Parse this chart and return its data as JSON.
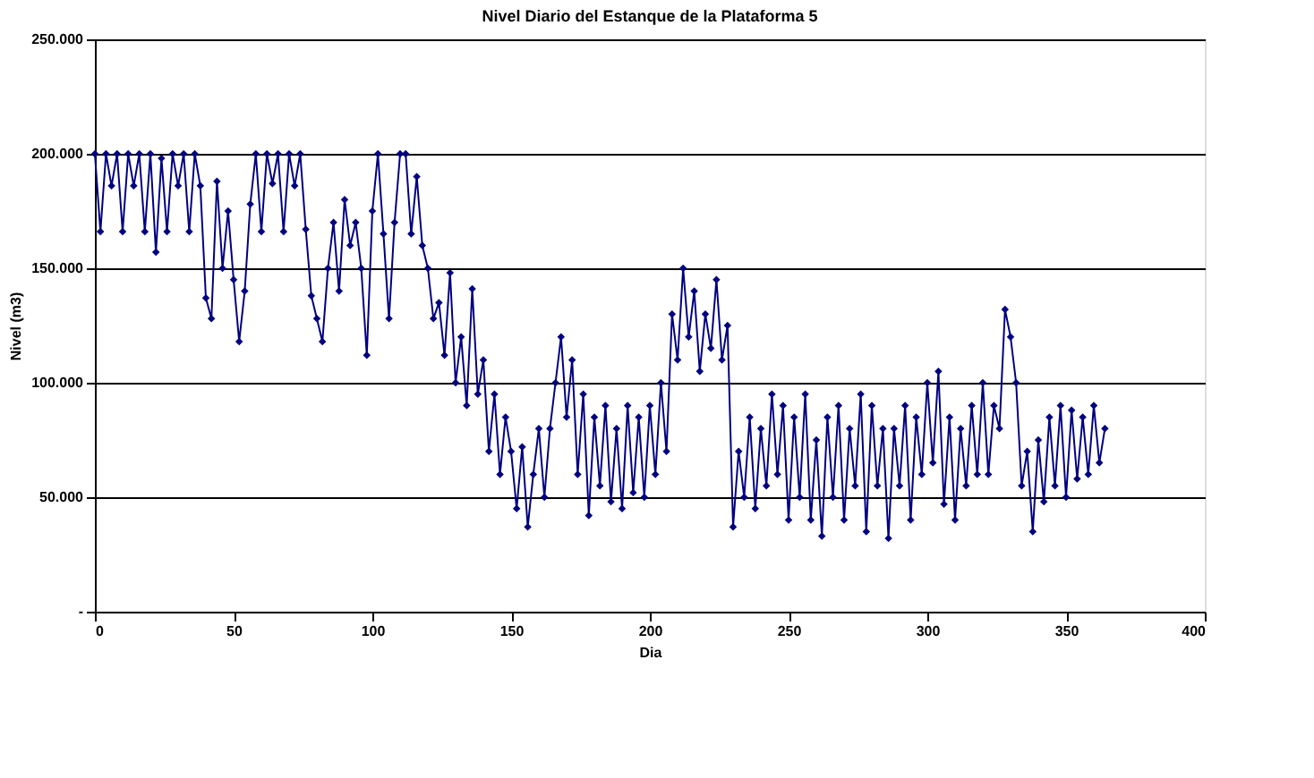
{
  "chart_data": {
    "type": "line",
    "title": "Nivel Diario del Estanque de la Plataforma 5",
    "xlabel": "Dia",
    "ylabel": "Nivel (m3)",
    "x": [
      0,
      2,
      4,
      6,
      8,
      10,
      12,
      14,
      16,
      18,
      20,
      22,
      24,
      26,
      28,
      30,
      32,
      34,
      36,
      38,
      40,
      42,
      44,
      46,
      48,
      50,
      52,
      54,
      56,
      58,
      60,
      62,
      64,
      66,
      68,
      70,
      72,
      74,
      76,
      78,
      80,
      82,
      84,
      86,
      88,
      90,
      92,
      94,
      96,
      98,
      100,
      102,
      104,
      106,
      108,
      110,
      112,
      114,
      116,
      118,
      120,
      122,
      124,
      126,
      128,
      130,
      132,
      134,
      136,
      138,
      140,
      142,
      144,
      146,
      148,
      150,
      152,
      154,
      156,
      158,
      160,
      162,
      164,
      166,
      168,
      170,
      172,
      174,
      176,
      178,
      180,
      182,
      184,
      186,
      188,
      190,
      192,
      194,
      196,
      198,
      200,
      202,
      204,
      206,
      208,
      210,
      212,
      214,
      216,
      218,
      220,
      222,
      224,
      226,
      228,
      230,
      232,
      234,
      236,
      238,
      240,
      242,
      244,
      246,
      248,
      250,
      252,
      254,
      256,
      258,
      260,
      262,
      264,
      266,
      268,
      270,
      272,
      274,
      276,
      278,
      280,
      282,
      284,
      286,
      288,
      290,
      292,
      294,
      296,
      298,
      300,
      302,
      304,
      306,
      308,
      310,
      312,
      314,
      316,
      318,
      320,
      322,
      324,
      326,
      328,
      330,
      332,
      334,
      336,
      338,
      340,
      342,
      344,
      346,
      348,
      350,
      352,
      354,
      356,
      358,
      360,
      362,
      364
    ],
    "series": [
      {
        "color": "#000080",
        "values": [
          200000,
          166000,
          200000,
          186000,
          200000,
          166000,
          200000,
          186000,
          200000,
          166000,
          200000,
          157000,
          198000,
          166000,
          200000,
          186000,
          200000,
          166000,
          200000,
          186000,
          137000,
          128000,
          188000,
          150000,
          175000,
          145000,
          118000,
          140000,
          178000,
          200000,
          166000,
          200000,
          187000,
          200000,
          166000,
          200000,
          186000,
          200000,
          167000,
          138000,
          128000,
          118000,
          150000,
          170000,
          140000,
          180000,
          160000,
          170000,
          150000,
          112000,
          175000,
          200000,
          165000,
          128000,
          170000,
          200000,
          200000,
          165000,
          190000,
          160000,
          150000,
          128000,
          135000,
          112000,
          148000,
          100000,
          120000,
          90000,
          141000,
          95000,
          110000,
          70000,
          95000,
          60000,
          85000,
          70000,
          45000,
          72000,
          37000,
          60000,
          80000,
          50000,
          80000,
          100000,
          120000,
          85000,
          110000,
          60000,
          95000,
          42000,
          85000,
          55000,
          90000,
          48000,
          80000,
          45000,
          90000,
          52000,
          85000,
          50000,
          90000,
          60000,
          100000,
          70000,
          130000,
          110000,
          150000,
          120000,
          140000,
          105000,
          130000,
          115000,
          145000,
          110000,
          125000,
          37000,
          70000,
          50000,
          85000,
          45000,
          80000,
          55000,
          95000,
          60000,
          90000,
          40000,
          85000,
          50000,
          95000,
          40000,
          75000,
          33000,
          85000,
          50000,
          90000,
          40000,
          80000,
          55000,
          95000,
          35000,
          90000,
          55000,
          80000,
          32000,
          80000,
          55000,
          90000,
          40000,
          85000,
          60000,
          100000,
          65000,
          105000,
          47000,
          85000,
          40000,
          80000,
          55000,
          90000,
          60000,
          100000,
          60000,
          90000,
          80000,
          132000,
          120000,
          100000,
          55000,
          70000,
          35000,
          75000,
          48000,
          85000,
          55000,
          90000,
          50000,
          88000,
          58000,
          85000,
          60000,
          90000,
          65000,
          80000
        ]
      }
    ],
    "xlim": [
      0,
      400
    ],
    "xticks": [
      0,
      50,
      100,
      150,
      200,
      250,
      300,
      350,
      400
    ],
    "ylim": [
      0,
      250000
    ],
    "yticks": [
      {
        "value": 0,
        "label": "-"
      },
      {
        "value": 50000,
        "label": "50.000"
      },
      {
        "value": 100000,
        "label": "100.000"
      },
      {
        "value": 150000,
        "label": "150.000"
      },
      {
        "value": 200000,
        "label": "200.000"
      },
      {
        "value": 250000,
        "label": "250.000"
      }
    ],
    "grid": "y",
    "marker": "diamond",
    "line_style": "solid"
  }
}
